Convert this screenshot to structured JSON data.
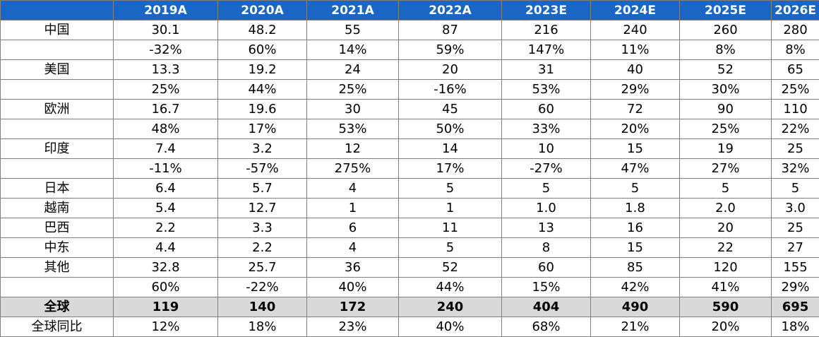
{
  "headers": [
    "",
    "2019A",
    "2020A",
    "2021A",
    "2022A",
    "2023E",
    "2024E",
    "2025E",
    "2026E"
  ],
  "rows": [
    {
      "label": "中国",
      "values": [
        "30.1",
        "48.2",
        "55",
        "87",
        "216",
        "240",
        "260",
        "280"
      ]
    },
    {
      "label": "",
      "values": [
        "-32%",
        "60%",
        "14%",
        "59%",
        "147%",
        "11%",
        "8%",
        "8%"
      ]
    },
    {
      "label": "美国",
      "values": [
        "13.3",
        "19.2",
        "24",
        "20",
        "31",
        "40",
        "52",
        "65"
      ]
    },
    {
      "label": "",
      "values": [
        "25%",
        "44%",
        "25%",
        "-16%",
        "53%",
        "29%",
        "30%",
        "25%"
      ]
    },
    {
      "label": "欧洲",
      "values": [
        "16.7",
        "19.6",
        "30",
        "45",
        "60",
        "72",
        "90",
        "110"
      ]
    },
    {
      "label": "",
      "values": [
        "48%",
        "17%",
        "53%",
        "50%",
        "33%",
        "20%",
        "25%",
        "22%"
      ]
    },
    {
      "label": "印度",
      "values": [
        "7.4",
        "3.2",
        "12",
        "14",
        "10",
        "15",
        "19",
        "25"
      ]
    },
    {
      "label": "",
      "values": [
        "-11%",
        "-57%",
        "275%",
        "17%",
        "-27%",
        "47%",
        "27%",
        "32%"
      ]
    },
    {
      "label": "日本",
      "values": [
        "6.4",
        "5.7",
        "4",
        "5",
        "5",
        "5",
        "5",
        "5"
      ]
    },
    {
      "label": "越南",
      "values": [
        "5.4",
        "12.7",
        "1",
        "1",
        "1.0",
        "1.8",
        "2.0",
        "3.0"
      ]
    },
    {
      "label": "巴西",
      "values": [
        "2.2",
        "3.3",
        "6",
        "11",
        "13",
        "16",
        "20",
        "25"
      ]
    },
    {
      "label": "中东",
      "values": [
        "4.4",
        "2.2",
        "4",
        "5",
        "8",
        "15",
        "22",
        "27"
      ]
    },
    {
      "label": "其他",
      "values": [
        "32.8",
        "25.7",
        "36",
        "52",
        "60",
        "85",
        "120",
        "155"
      ]
    },
    {
      "label": "",
      "values": [
        "60%",
        "-22%",
        "40%",
        "44%",
        "15%",
        "42%",
        "41%",
        "29%"
      ]
    }
  ],
  "total": {
    "label": "全球",
    "values": [
      "119",
      "140",
      "172",
      "240",
      "404",
      "490",
      "590",
      "695"
    ]
  },
  "global_yoy": {
    "label": "全球同比",
    "values": [
      "12%",
      "18%",
      "23%",
      "40%",
      "68%",
      "21%",
      "20%",
      "18%"
    ]
  }
}
